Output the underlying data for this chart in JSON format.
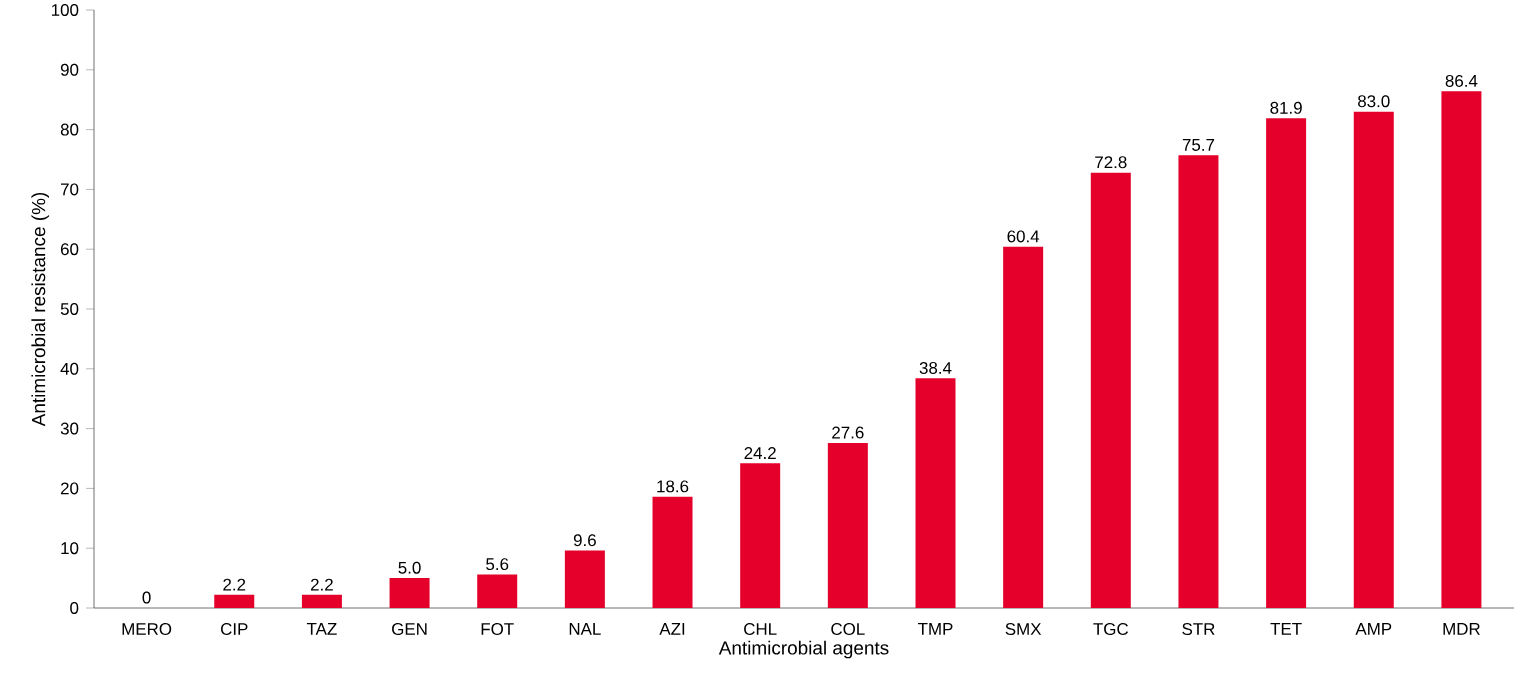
{
  "chart_data": {
    "type": "bar",
    "xlabel": "Antimicrobial agents",
    "ylabel": "Antimicrobial resistance (%)",
    "categories": [
      "MERO",
      "CIP",
      "TAZ",
      "GEN",
      "FOT",
      "NAL",
      "AZI",
      "CHL",
      "COL",
      "TMP",
      "SMX",
      "TGC",
      "STR",
      "TET",
      "AMP",
      "MDR"
    ],
    "values": [
      0,
      2.2,
      2.2,
      5.0,
      5.6,
      9.6,
      18.6,
      24.2,
      27.6,
      38.4,
      60.4,
      72.8,
      75.7,
      81.9,
      83.0,
      86.4
    ],
    "value_labels": [
      "0",
      "2.2",
      "2.2",
      "5.0",
      "5.6",
      "9.6",
      "18.6",
      "24.2",
      "27.6",
      "38.4",
      "60.4",
      "72.8",
      "75.7",
      "81.9",
      "83.0",
      "86.4"
    ],
    "color": "#e4002b",
    "ylim": [
      0,
      100
    ],
    "yticks": [
      0,
      10,
      20,
      30,
      40,
      50,
      60,
      70,
      80,
      90,
      100
    ],
    "grid": false
  }
}
